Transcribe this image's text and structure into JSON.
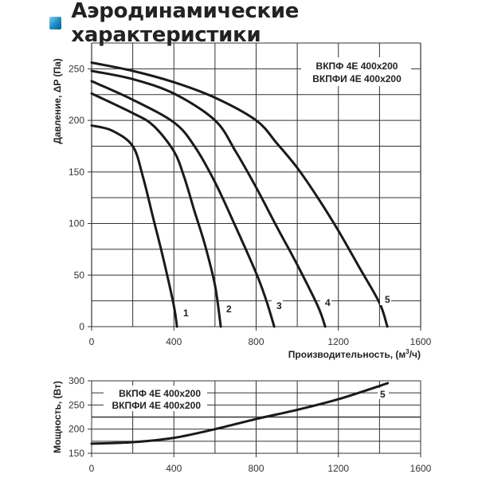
{
  "title": "Аэродинамические характеристики",
  "chart_data": [
    {
      "type": "line",
      "title": "Аэродинамические характеристики",
      "xlabel": "Производительность, (м³/ч)",
      "ylabel": "Давление, ΔP (Па)",
      "xlim": [
        0,
        1600
      ],
      "ylim": [
        0,
        275
      ],
      "xticks": [
        0,
        400,
        800,
        1200,
        1600
      ],
      "yticks": [
        0,
        50,
        100,
        150,
        200,
        250
      ],
      "grid": true,
      "legend": [
        "ВКПФ 4E 400x200",
        "ВКПФИ 4E 400x200"
      ],
      "legend_position": "top-right",
      "series": [
        {
          "name": "1",
          "x": [
            0,
            100,
            200,
            250,
            300,
            350,
            400,
            415
          ],
          "y": [
            195,
            190,
            175,
            145,
            105,
            65,
            20,
            0
          ]
        },
        {
          "name": "2",
          "x": [
            0,
            200,
            300,
            400,
            450,
            500,
            550,
            600,
            628
          ],
          "y": [
            226,
            207,
            195,
            170,
            145,
            112,
            80,
            40,
            0
          ]
        },
        {
          "name": "3",
          "x": [
            0,
            200,
            400,
            500,
            600,
            700,
            800,
            850,
            888
          ],
          "y": [
            238,
            220,
            198,
            175,
            140,
            97,
            52,
            25,
            0
          ]
        },
        {
          "name": "4",
          "x": [
            0,
            200,
            400,
            600,
            700,
            800,
            900,
            1000,
            1100,
            1136
          ],
          "y": [
            248,
            240,
            226,
            200,
            170,
            135,
            97,
            60,
            20,
            0
          ]
        },
        {
          "name": "5",
          "x": [
            0,
            200,
            400,
            600,
            800,
            900,
            1000,
            1100,
            1200,
            1300,
            1400,
            1438
          ],
          "y": [
            256,
            248,
            237,
            222,
            200,
            178,
            154,
            125,
            93,
            58,
            23,
            0
          ]
        }
      ]
    },
    {
      "type": "line",
      "xlabel": "",
      "ylabel": "Мощность, (Вт)",
      "xlim": [
        0,
        1600
      ],
      "ylim": [
        150,
        300
      ],
      "xticks": [
        0,
        400,
        800,
        1200,
        1600
      ],
      "yticks": [
        150,
        200,
        250,
        300
      ],
      "grid": true,
      "legend": [
        "ВКПФ 4E 400x200",
        "ВКПФИ 4E 400x200"
      ],
      "legend_position": "top-left",
      "series": [
        {
          "name": "5",
          "x": [
            0,
            200,
            400,
            600,
            800,
            1000,
            1200,
            1440
          ],
          "y": [
            170,
            173,
            182,
            200,
            221,
            240,
            262,
            295
          ]
        }
      ]
    }
  ],
  "labels": {
    "xticks": [
      "0",
      "400",
      "800",
      "1200",
      "1600"
    ],
    "pressure_yticks": [
      "0",
      "50",
      "100",
      "150",
      "200",
      "250"
    ],
    "power_yticks": [
      "150",
      "200",
      "250",
      "300"
    ],
    "pressure_ylabel": "Давление, ΔP (Па)",
    "power_ylabel": "Мощность, (Вт)",
    "xlabel_main": "Производительность, (м",
    "xlabel_sup": "3",
    "xlabel_end": "/ч)",
    "legend1": "ВКПФ  4E 400x200",
    "legend2": "ВКПФИ 4E 400x200",
    "curve_labels": [
      "1",
      "2",
      "3",
      "4",
      "5"
    ],
    "power_curve_label": "5"
  }
}
